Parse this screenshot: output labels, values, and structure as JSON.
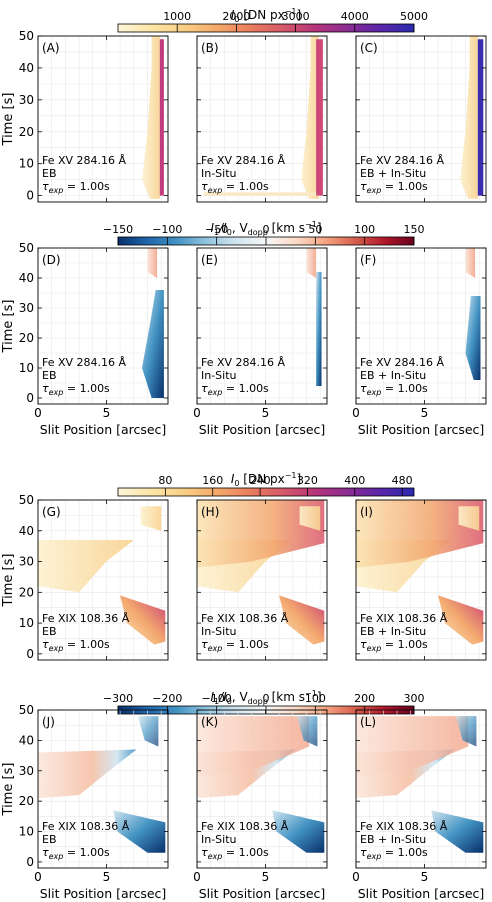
{
  "figure": {
    "sections": [
      {
        "colorbar": {
          "label_main": "I",
          "label_sub": "0",
          "label_unit": " [DN px",
          "label_sup": "−1",
          "label_end": "]",
          "ticks": [
            "1000",
            "2000",
            "3000",
            "4000",
            "5000"
          ],
          "tick_values": [
            1000,
            2000,
            3000,
            4000,
            5000
          ],
          "range": [
            0,
            5000
          ],
          "colormap": "plasma_r"
        },
        "show_xticklabels": false
      },
      {
        "colorbar": {
          "label_main": "I",
          "label_sub": "1",
          "label_mid": "/I",
          "label_sub2": "0",
          "label_unit": ", V",
          "label_sub3": "dopp",
          "label_unit2": " [km s",
          "label_sup": "−1",
          "label_end": "]",
          "ticks": [
            "−150",
            "−100",
            "−50",
            "0",
            "50",
            "100",
            "150"
          ],
          "tick_values": [
            -150,
            -100,
            -50,
            0,
            50,
            100,
            150
          ],
          "range": [
            -150,
            150
          ],
          "colormap": "RdBu_r"
        },
        "show_xticklabels": true
      },
      {
        "colorbar": {
          "label_main": "I",
          "label_sub": "0",
          "label_unit": " [DN px",
          "label_sup": "−1",
          "label_end": "]",
          "ticks": [
            "80",
            "160",
            "240",
            "320",
            "400",
            "480"
          ],
          "tick_values": [
            80,
            160,
            240,
            320,
            400,
            480
          ],
          "range": [
            0,
            500
          ],
          "colormap": "plasma_r"
        },
        "show_xticklabels": false
      },
      {
        "colorbar": {
          "label_main": "I",
          "label_sub": "1",
          "label_mid": "/I",
          "label_sub2": "0",
          "label_unit": ", V",
          "label_sub3": "dopp",
          "label_unit2": " [km s",
          "label_sup": "−1",
          "label_end": "]",
          "ticks": [
            "−300",
            "−200",
            "−100",
            "0",
            "100",
            "200",
            "300"
          ],
          "tick_values": [
            -300,
            -200,
            -100,
            0,
            100,
            200,
            300
          ],
          "range": [
            -300,
            300
          ],
          "colormap": "RdBu_r"
        },
        "show_xticklabels": true
      }
    ],
    "ylabel": "Time [s]",
    "xlabel": "Slit Position [arcsec]",
    "exposure": {
      "prefix": "τ",
      "sub": "exp",
      "suffix": " = 1.00s"
    }
  },
  "chart_data": [
    {
      "type": "heatmap",
      "panels": [
        {
          "letter": "(A)",
          "line": "Fe XV 284.16 Å",
          "model": "EB"
        },
        {
          "letter": "(B)",
          "line": "Fe XV 284.16 Å",
          "model": "In-Situ"
        },
        {
          "letter": "(C)",
          "line": "Fe XV 284.16 Å",
          "model": "EB + In-Situ"
        }
      ],
      "quantity": "I0",
      "xlim": [
        0,
        9.5
      ],
      "ylim": [
        -2,
        50
      ],
      "xticks": [
        0,
        5
      ],
      "yticks": [
        0,
        10,
        20,
        30,
        40,
        50
      ]
    },
    {
      "type": "heatmap",
      "panels": [
        {
          "letter": "(D)",
          "line": "Fe XV 284.16 Å",
          "model": "EB"
        },
        {
          "letter": "(E)",
          "line": "Fe XV 284.16 Å",
          "model": "In-Situ"
        },
        {
          "letter": "(F)",
          "line": "Fe XV 284.16 Å",
          "model": "EB + In-Situ"
        }
      ],
      "quantity": "V_dopp",
      "xlim": [
        0,
        9.5
      ],
      "ylim": [
        -2,
        50
      ],
      "xticks": [
        0,
        5
      ],
      "yticks": [
        0,
        10,
        20,
        30,
        40,
        50
      ]
    },
    {
      "type": "heatmap",
      "panels": [
        {
          "letter": "(G)",
          "line": "Fe XIX 108.36 Å",
          "model": "EB"
        },
        {
          "letter": "(H)",
          "line": "Fe XIX 108.36 Å",
          "model": "In-Situ"
        },
        {
          "letter": "(I)",
          "line": "Fe XIX 108.36 Å",
          "model": "EB + In-Situ"
        }
      ],
      "quantity": "I0",
      "xlim": [
        0,
        9.5
      ],
      "ylim": [
        -2,
        50
      ],
      "xticks": [
        0,
        5
      ],
      "yticks": [
        0,
        10,
        20,
        30,
        40,
        50
      ]
    },
    {
      "type": "heatmap",
      "panels": [
        {
          "letter": "(J)",
          "line": "Fe XIX 108.36 Å",
          "model": "EB"
        },
        {
          "letter": "(K)",
          "line": "Fe XIX 108.36 Å",
          "model": "In-Situ"
        },
        {
          "letter": "(L)",
          "line": "Fe XIX 108.36 Å",
          "model": "EB + In-Situ"
        }
      ],
      "quantity": "V_dopp",
      "xlim": [
        0,
        9.5
      ],
      "ylim": [
        -2,
        50
      ],
      "xticks": [
        0,
        5
      ],
      "yticks": [
        0,
        10,
        20,
        30,
        40,
        50
      ]
    }
  ]
}
